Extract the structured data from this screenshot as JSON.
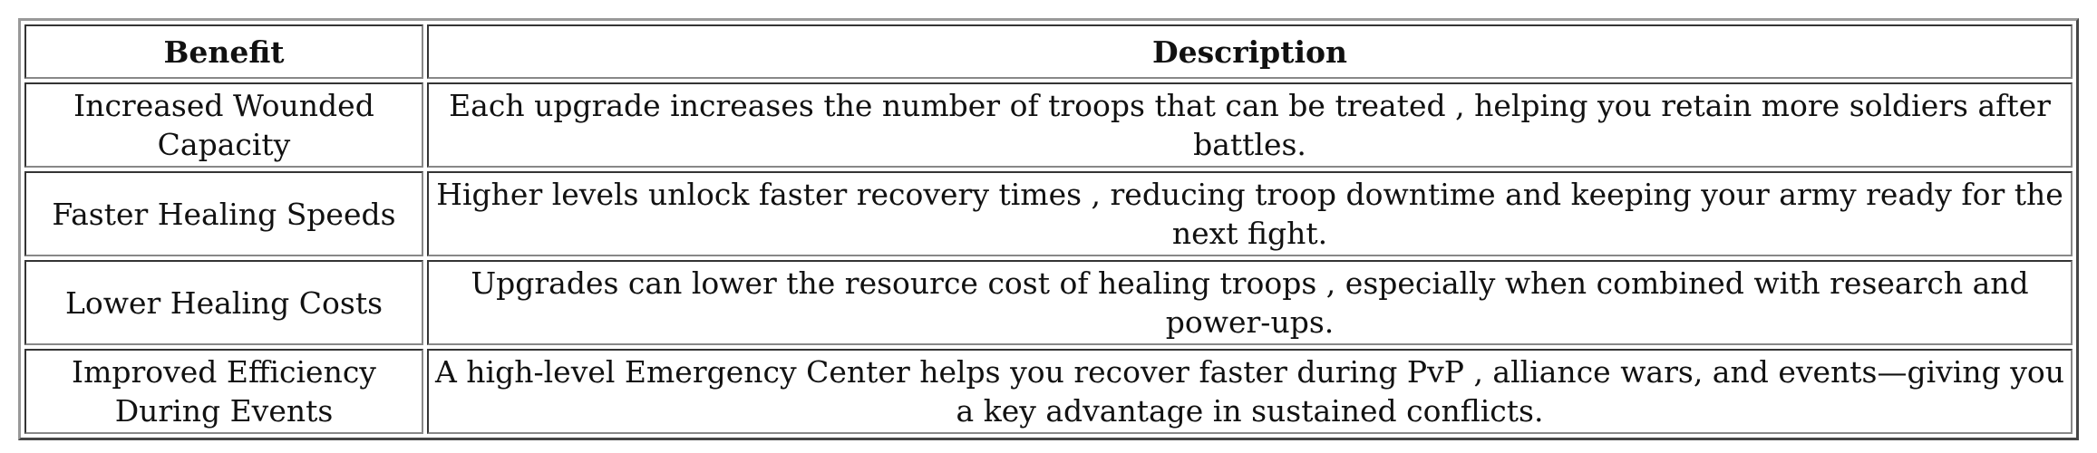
{
  "table": {
    "headers": [
      "Benefit",
      "Description"
    ],
    "rows": [
      {
        "benefit": "Increased Wounded Capacity",
        "description": "Each upgrade increases the number of troops that can be treated , helping you retain more soldiers after battles."
      },
      {
        "benefit": "Faster Healing Speeds",
        "description": "Higher levels unlock faster recovery times , reducing troop downtime and keeping your army ready for the next fight."
      },
      {
        "benefit": "Lower Healing Costs",
        "description": "Upgrades can lower the resource cost of healing troops , especially when combined with research and power-ups."
      },
      {
        "benefit": "Improved Efficiency During Events",
        "description": "A high-level Emergency Center helps you recover faster during PvP , alliance wars, and events—giving you a key advantage in sustained conflicts."
      }
    ]
  }
}
